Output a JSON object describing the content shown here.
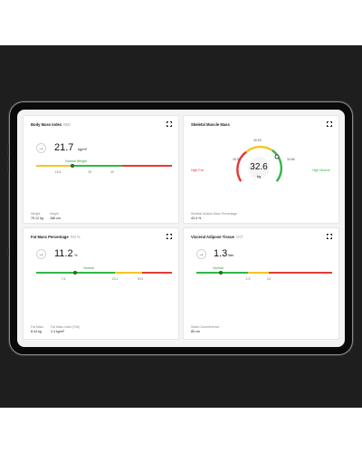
{
  "colors": {
    "green": "#2fb84a",
    "yellow": "#f2c623",
    "orange": "#f39c12",
    "red": "#e53935"
  },
  "bmi": {
    "title": "Body Mass Index",
    "abbr": "BMI",
    "value": "21.7",
    "unit": "kg/m²",
    "range_label": "Normal Weight",
    "ticks": [
      "18.5",
      "25",
      "30"
    ],
    "weight_label": "Weight",
    "weight_value": "75.12 kg",
    "height_label": "Height",
    "height_value": "186 cm",
    "level": 0.44
  },
  "skeletal": {
    "title": "Skeletal Muscle Mass",
    "value": "32.6",
    "unit": "kg",
    "low_label": "High Fat",
    "high_label": "High Muscle",
    "ticks": [
      "26.92",
      "30.93",
      "34.68"
    ],
    "pct_label": "Skeletal Muscle Mass Percentage",
    "pct_value": "43.4 %"
  },
  "fat": {
    "title": "Fat Mass Percentage",
    "abbr": "FM %",
    "value": "11.2",
    "unit": "%",
    "range_label": "Normal",
    "ticks": [
      "7.6",
      "23.1",
      "30.6"
    ],
    "fat_mass_label": "Fat Mass",
    "fat_mass_value": "8.44 kg",
    "fmi_label": "Fat Mass Index (FMI)",
    "fmi_value": "2.4 kg/m²",
    "level": 0.28
  },
  "visceral": {
    "title": "Visceral Adipose Tissue",
    "abbr": "VAT",
    "value": "1.3",
    "unit": "liter",
    "range_label": "Normal",
    "ticks": [
      "2.5",
      "3.5"
    ],
    "waist_label": "Waist Circumference",
    "waist_value": "85 cm",
    "level": 0.18
  },
  "icons": {
    "arrow": "→",
    "expand": "expand-icon"
  }
}
